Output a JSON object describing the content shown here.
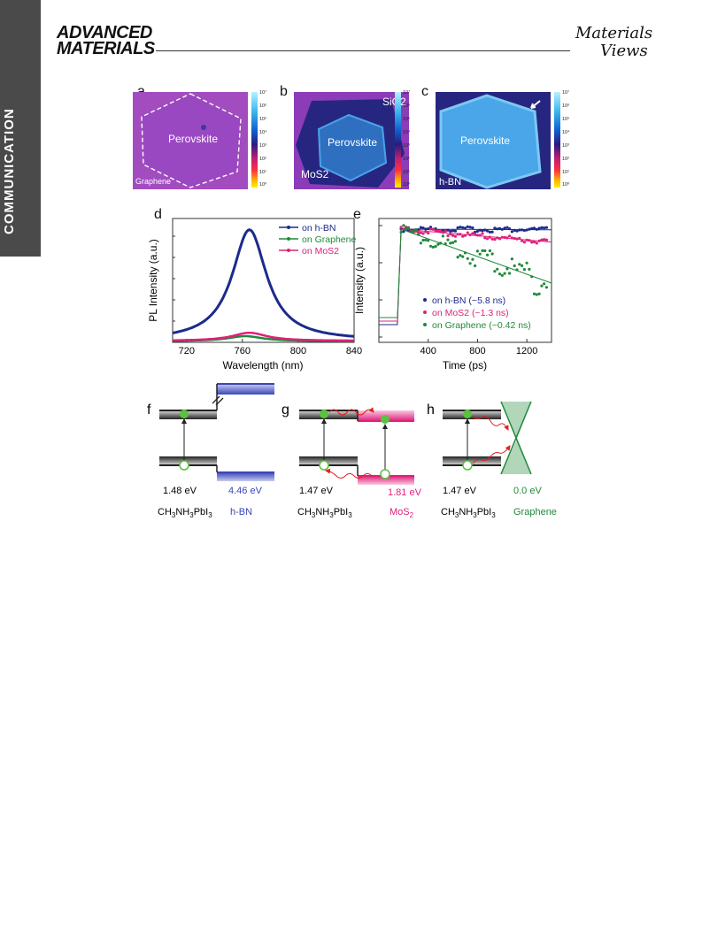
{
  "header": {
    "sidebar_label": "COMMUNICATION",
    "journal_line1": "ADVANCED",
    "journal_line2": "MATERIALS",
    "brand_line1": "Materials",
    "brand_line2": "Views"
  },
  "panels": {
    "a": {
      "letter": "a",
      "center_label": "Perovskite",
      "corner_label": "Graphene"
    },
    "b": {
      "letter": "b",
      "center_label": "Perovskite",
      "top_label": "SiO2",
      "bottom_label": "MoS2"
    },
    "c": {
      "letter": "c",
      "center_label": "Perovskite",
      "corner_label": "h-BN"
    },
    "colorbar_ticks": [
      "10⁷",
      "10⁶",
      "10⁵",
      "10⁴",
      "10³",
      "10²",
      "10¹",
      "10⁰"
    ]
  },
  "chart_data": [
    {
      "panel": "d",
      "type": "line",
      "xlabel": "Wavelength (nm)",
      "ylabel": "PL Intensity (a.u.)",
      "xlim": [
        710,
        840
      ],
      "x_ticks": [
        720,
        760,
        800,
        840
      ],
      "legend_position": "top-right",
      "series": [
        {
          "name": "on h-BN",
          "color": "#1c2a8c",
          "peak_x": 765,
          "peak": 100,
          "base": 1.5
        },
        {
          "name": "on Graphene",
          "color": "#1f8a3a",
          "peak_x": 762,
          "peak": 5.5,
          "base": 1.0
        },
        {
          "name": "on MoS2",
          "color": "#e0207a",
          "peak_x": 765,
          "peak": 8.5,
          "base": 1.3
        }
      ]
    },
    {
      "panel": "e",
      "type": "scatter",
      "xlabel": "Time (ps)",
      "ylabel": "Intensity (a.u.)",
      "xlim": [
        0,
        1400
      ],
      "x_ticks": [
        400,
        800,
        1200
      ],
      "yscale": "log",
      "legend_position": "bottom-right",
      "series": [
        {
          "name": "on h-BN (~5.8 ns)",
          "color": "#1c2a8c",
          "tau_ns": 5.8
        },
        {
          "name": "on MoS2 (~1.3 ns)",
          "color": "#e0207a",
          "tau_ns": 1.3
        },
        {
          "name": "on Graphene (~0.42 ns)",
          "color": "#1f8a3a",
          "tau_ns": 0.42
        }
      ]
    }
  ],
  "diagrams": {
    "f": {
      "letter": "f",
      "gap_left": "1.48 eV",
      "gap_right": "4.46 eV",
      "material_right": "h-BN"
    },
    "g": {
      "letter": "g",
      "gap_left": "1.47 eV",
      "gap_right": "1.81 eV",
      "material_right": "MoS2"
    },
    "h": {
      "letter": "h",
      "gap_left": "1.47 eV",
      "gap_right": "0.0 eV",
      "material_right": "Graphene"
    },
    "material_left": "CH3NH3PbI3"
  },
  "colors": {
    "hbn": "#4a56c0",
    "mos2": "#e0207a",
    "graphene": "#1f8a3a",
    "sidebar": "#4a4a4a"
  }
}
